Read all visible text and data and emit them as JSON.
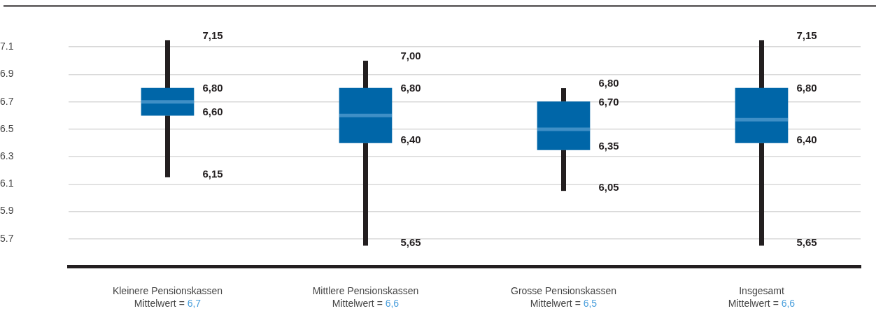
{
  "chart_data": {
    "type": "box",
    "categories": [
      "Kleinere Pensionskassen",
      "Mittlere Pensionskassen",
      "Grosse Pensionskassen",
      "Insgesamt"
    ],
    "series": [
      {
        "color": "#0066a8",
        "boxes": [
          {
            "low": 6.15,
            "q1": 6.6,
            "median": 6.7,
            "q3": 6.8,
            "high": 7.15
          },
          {
            "low": 5.65,
            "q1": 6.4,
            "median": 6.6,
            "q3": 6.8,
            "high": 7.0
          },
          {
            "low": 6.05,
            "q1": 6.35,
            "median": 6.5,
            "q3": 6.7,
            "high": 6.8
          },
          {
            "low": 5.65,
            "q1": 6.4,
            "median": 6.57,
            "q3": 6.8,
            "high": 7.15
          }
        ]
      }
    ],
    "ylim": [
      5.5,
      7.4
    ],
    "yticks": [
      5.7,
      5.9,
      6.1,
      6.3,
      6.5,
      6.7,
      6.9,
      7.1
    ],
    "grid": "y",
    "annotations": [
      "7,15",
      "6,80",
      "6,60",
      "6,15",
      "7,00",
      "6,80",
      "6,40",
      "5,65",
      "6,80",
      "6,70",
      "6,35",
      "6,05",
      "7,15",
      "6,80",
      "6,40",
      "5,65",
      "Mittelwert = 6,7",
      "Mittelwert = 6,6",
      "Mittelwert = 6,5",
      "Mittelwert = 6,6"
    ]
  }
}
